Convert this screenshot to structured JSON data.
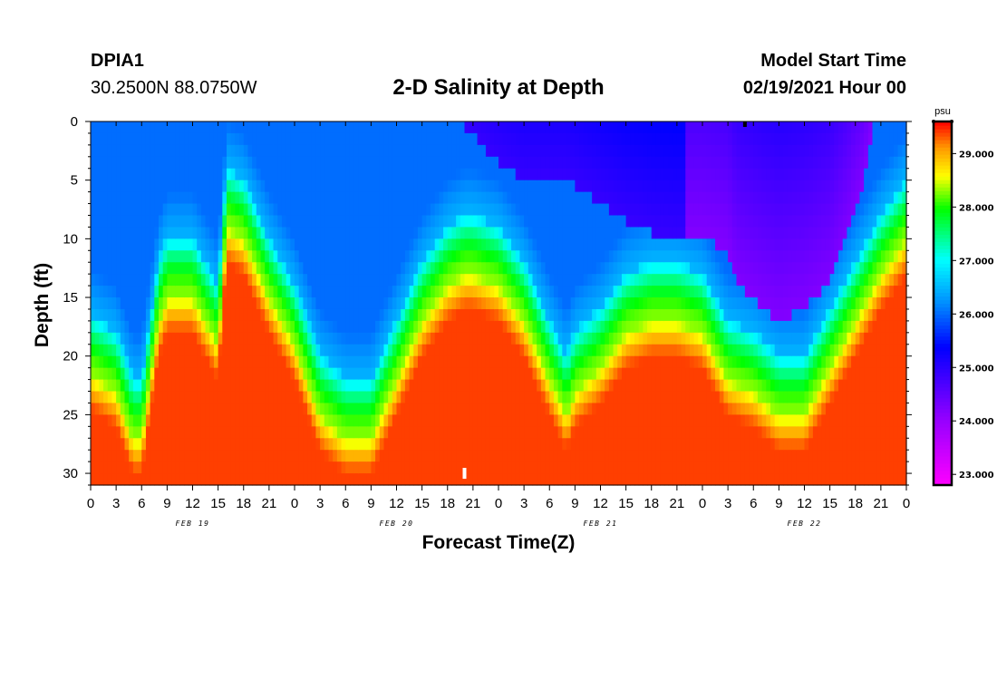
{
  "header": {
    "station": "DPIA1",
    "coordinates": "30.2500N 88.0750W",
    "title": "2-D Salinity at Depth",
    "model_start_label": "Model Start Time",
    "model_start_value": "02/19/2021 Hour 00"
  },
  "chart_data": {
    "type": "heatmap",
    "title": "2-D Salinity at Depth",
    "xlabel": "Forecast Time(Z)",
    "ylabel": "Depth (ft)",
    "x_hours_range": [
      0,
      96
    ],
    "y_depth_range": [
      0,
      31
    ],
    "x_tick_labels": [
      "0",
      "3",
      "6",
      "9",
      "12",
      "15",
      "18",
      "21",
      "0",
      "3",
      "6",
      "9",
      "12",
      "15",
      "18",
      "21",
      "0",
      "3",
      "6",
      "9",
      "12",
      "15",
      "18",
      "21",
      "0",
      "3",
      "6",
      "9",
      "12",
      "15",
      "18",
      "21",
      "0"
    ],
    "y_ticks": [
      0,
      5,
      10,
      15,
      20,
      25,
      30
    ],
    "day_labels": [
      {
        "label": "FEB 19",
        "hour": 12
      },
      {
        "label": "FEB 20",
        "hour": 36
      },
      {
        "label": "FEB 21",
        "hour": 60
      },
      {
        "label": "FEB 22",
        "hour": 84
      }
    ],
    "colorbar": {
      "unit": "psu",
      "min": 22.8,
      "max": 29.6,
      "tick_labels": [
        "29.000",
        "28.000",
        "27.000",
        "26.000",
        "25.000",
        "24.000",
        "23.000"
      ],
      "tick_values": [
        29,
        28,
        27,
        26,
        25,
        24,
        23
      ]
    },
    "interface_depth_by_hour": {
      "hours": [
        0,
        3,
        5,
        6,
        8,
        9,
        12,
        15,
        16,
        18,
        21,
        24,
        27,
        30,
        33,
        36,
        39,
        42,
        44,
        45,
        48,
        51,
        54,
        56,
        57,
        60,
        63,
        66,
        69,
        72,
        75,
        78,
        81,
        84,
        87,
        90,
        93,
        96
      ],
      "depths": [
        16.5,
        18,
        22,
        22,
        12,
        10,
        10,
        14,
        4,
        5,
        10,
        14,
        20,
        22,
        22,
        17,
        12,
        9,
        8,
        8,
        9,
        12,
        17,
        20,
        18,
        16,
        13,
        12,
        12,
        13,
        17,
        18,
        20,
        20,
        16,
        12,
        8,
        5
      ]
    },
    "low_salinity_pool": {
      "hours": [
        44,
        48,
        51,
        54,
        56,
        60,
        63,
        66,
        69,
        72,
        75,
        76,
        79,
        81,
        84,
        87,
        89,
        91,
        92
      ],
      "depths": [
        0.5,
        3.5,
        5,
        5,
        5,
        7,
        8.5,
        9.5,
        10,
        10,
        11,
        14,
        16,
        17,
        16,
        14,
        10,
        5,
        0.5
      ]
    },
    "markers": [
      {
        "hour": 77,
        "depth": 0,
        "color": "#000000"
      },
      {
        "hour": 44,
        "depth": 30,
        "color": "#ffffff"
      }
    ]
  }
}
